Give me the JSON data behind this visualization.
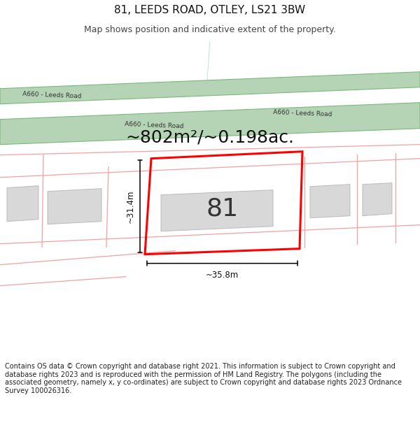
{
  "title": "81, LEEDS ROAD, OTLEY, LS21 3BW",
  "subtitle": "Map shows position and indicative extent of the property.",
  "area_label": "~802m²/~0.198ac.",
  "number_label": "81",
  "dim_height": "~31.4m",
  "dim_width": "~35.8m",
  "road_label1": "A660 - Leeds Road",
  "road_label2": "A660 - Leeds Road",
  "road_label3": "A660 - Leeds Road",
  "copyright_text": "Contains OS data © Crown copyright and database right 2021. This information is subject to Crown copyright and database rights 2023 and is reproduced with the permission of HM Land Registry. The polygons (including the associated geometry, namely x, y co-ordinates) are subject to Crown copyright and database rights 2023 Ordnance Survey 100026316.",
  "bg_color": "#ffffff",
  "map_bg": "#ffffff",
  "road_fill": "#b5d4b5",
  "road_stroke": "#7ab87a",
  "plot_outline": "#ff0000",
  "pink_line": "#f4a0a0",
  "gray_fill": "#d8d8d8",
  "gray_stroke": "#bbbbbb",
  "title_color": "#111111",
  "sub_color": "#444444",
  "foot_color": "#222222"
}
